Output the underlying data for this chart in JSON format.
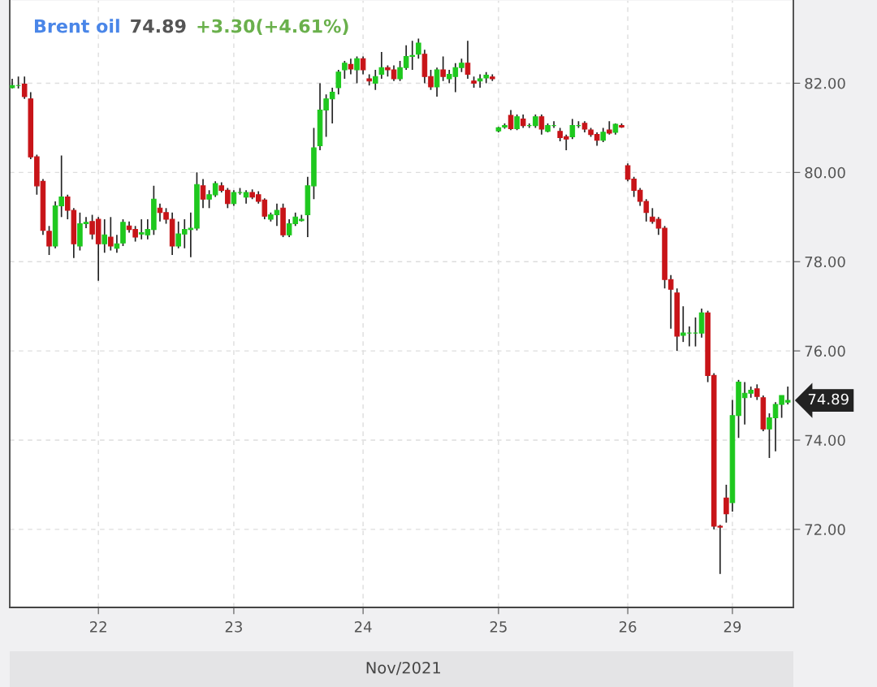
{
  "chart_data": {
    "type": "candlestick",
    "title": "Brent oil",
    "xlabel": "Nov/2021",
    "annotations": [
      "74.89",
      "+3.30(+4.61%)",
      "74.89"
    ],
    "categories": [
      null,
      null,
      null,
      null,
      null,
      null,
      null,
      null,
      null,
      null,
      null,
      null,
      null,
      null,
      "22",
      null,
      null,
      null,
      null,
      null,
      null,
      null,
      null,
      null,
      null,
      null,
      null,
      null,
      null,
      null,
      null,
      null,
      null,
      null,
      null,
      null,
      "23",
      null,
      null,
      null,
      null,
      null,
      null,
      null,
      null,
      null,
      null,
      null,
      null,
      null,
      null,
      null,
      null,
      null,
      null,
      null,
      null,
      "24",
      null,
      null,
      null,
      null,
      null,
      null,
      null,
      null,
      null,
      null,
      null,
      null,
      null,
      null,
      null,
      null,
      null,
      null,
      null,
      null,
      null,
      "25",
      null,
      null,
      null,
      null,
      null,
      null,
      null,
      null,
      null,
      null,
      null,
      null,
      null,
      null,
      null,
      null,
      null,
      null,
      null,
      null,
      "26",
      null,
      null,
      null,
      null,
      null,
      null,
      null,
      null,
      null,
      null,
      null,
      null,
      null,
      null,
      null,
      null,
      "29",
      null,
      null,
      null,
      null,
      null,
      null,
      null,
      null,
      null
    ],
    "ohlc": [
      [
        81.9,
        82.1,
        81.88,
        81.95
      ],
      [
        81.95,
        82.15,
        81.88,
        81.95
      ],
      [
        81.98,
        82.15,
        81.65,
        81.7
      ],
      [
        81.65,
        81.8,
        80.3,
        80.35
      ],
      [
        80.35,
        80.4,
        79.5,
        79.7
      ],
      [
        79.8,
        79.85,
        78.6,
        78.7
      ],
      [
        78.68,
        78.8,
        78.15,
        78.35
      ],
      [
        78.35,
        79.35,
        78.3,
        79.25
      ],
      [
        79.25,
        80.38,
        79.0,
        79.45
      ],
      [
        79.45,
        79.5,
        78.95,
        79.15
      ],
      [
        79.15,
        79.2,
        78.08,
        78.4
      ],
      [
        78.35,
        79.1,
        78.25,
        78.85
      ],
      [
        78.85,
        79.0,
        78.75,
        78.88
      ],
      [
        78.9,
        79.05,
        78.5,
        78.62
      ],
      [
        78.95,
        79.0,
        77.57,
        78.4
      ],
      [
        78.4,
        78.95,
        78.2,
        78.6
      ],
      [
        78.55,
        79.0,
        78.25,
        78.35
      ],
      [
        78.3,
        78.6,
        78.2,
        78.4
      ],
      [
        78.42,
        78.95,
        78.35,
        78.88
      ],
      [
        78.8,
        78.9,
        78.65,
        78.72
      ],
      [
        78.72,
        78.8,
        78.45,
        78.55
      ],
      [
        78.62,
        78.95,
        78.5,
        78.65
      ],
      [
        78.6,
        78.95,
        78.5,
        78.72
      ],
      [
        78.72,
        79.7,
        78.6,
        79.4
      ],
      [
        79.2,
        79.3,
        78.9,
        79.1
      ],
      [
        79.1,
        79.2,
        78.85,
        78.95
      ],
      [
        78.95,
        79.1,
        78.15,
        78.35
      ],
      [
        78.35,
        78.9,
        78.3,
        78.62
      ],
      [
        78.62,
        78.95,
        78.3,
        78.72
      ],
      [
        78.72,
        79.1,
        78.1,
        78.75
      ],
      [
        78.75,
        80.0,
        78.7,
        79.73
      ],
      [
        79.7,
        79.85,
        79.2,
        79.4
      ],
      [
        79.4,
        79.6,
        79.2,
        79.5
      ],
      [
        79.5,
        79.8,
        79.45,
        79.75
      ],
      [
        79.7,
        79.78,
        79.55,
        79.6
      ],
      [
        79.6,
        79.65,
        79.2,
        79.3
      ],
      [
        79.3,
        79.6,
        79.25,
        79.55
      ],
      [
        79.55,
        79.65,
        79.5,
        79.55
      ],
      [
        79.45,
        79.6,
        79.3,
        79.55
      ],
      [
        79.55,
        79.62,
        79.4,
        79.45
      ],
      [
        79.5,
        79.58,
        79.3,
        79.35
      ],
      [
        79.38,
        79.42,
        78.95,
        79.02
      ],
      [
        78.95,
        79.1,
        78.9,
        79.05
      ],
      [
        79.05,
        79.3,
        78.8,
        79.15
      ],
      [
        79.2,
        79.3,
        78.55,
        78.6
      ],
      [
        78.6,
        78.95,
        78.55,
        78.85
      ],
      [
        78.85,
        79.1,
        78.8,
        79.0
      ],
      [
        78.92,
        79.05,
        78.9,
        78.95
      ],
      [
        79.05,
        79.9,
        78.55,
        79.7
      ],
      [
        79.7,
        81.0,
        79.4,
        80.55
      ],
      [
        80.6,
        82.0,
        80.5,
        81.4
      ],
      [
        81.4,
        81.75,
        80.8,
        81.65
      ],
      [
        81.65,
        81.9,
        81.1,
        81.8
      ],
      [
        81.9,
        82.3,
        81.75,
        82.25
      ],
      [
        82.3,
        82.5,
        82.1,
        82.45
      ],
      [
        82.42,
        82.55,
        82.2,
        82.32
      ],
      [
        82.3,
        82.6,
        82.0,
        82.55
      ],
      [
        82.55,
        82.6,
        82.2,
        82.3
      ],
      [
        82.1,
        82.2,
        81.95,
        82.05
      ],
      [
        82.0,
        82.3,
        81.85,
        82.15
      ],
      [
        82.2,
        82.7,
        82.1,
        82.35
      ],
      [
        82.35,
        82.4,
        82.15,
        82.3
      ],
      [
        82.3,
        82.4,
        82.05,
        82.1
      ],
      [
        82.1,
        82.5,
        82.05,
        82.35
      ],
      [
        82.35,
        82.85,
        82.3,
        82.6
      ],
      [
        82.6,
        82.95,
        82.3,
        82.62
      ],
      [
        82.65,
        83.0,
        82.55,
        82.9
      ],
      [
        82.65,
        82.75,
        82.0,
        82.15
      ],
      [
        82.15,
        82.3,
        81.85,
        81.92
      ],
      [
        81.92,
        82.35,
        81.7,
        82.3
      ],
      [
        82.3,
        82.6,
        82.05,
        82.15
      ],
      [
        82.1,
        82.3,
        82.0,
        82.2
      ],
      [
        82.15,
        82.45,
        81.8,
        82.35
      ],
      [
        82.35,
        82.55,
        82.25,
        82.45
      ],
      [
        82.45,
        82.95,
        82.1,
        82.2
      ],
      [
        82.05,
        82.15,
        81.9,
        82.0
      ],
      [
        82.05,
        82.2,
        81.9,
        82.1
      ],
      [
        82.12,
        82.25,
        82.0,
        82.18
      ],
      [
        82.14,
        82.2,
        82.05,
        82.1
      ],
      [
        80.93,
        81.02,
        80.9,
        81.0
      ],
      [
        81.02,
        81.1,
        80.98,
        81.05
      ],
      [
        81.28,
        81.4,
        80.95,
        80.98
      ],
      [
        80.98,
        81.3,
        80.95,
        81.25
      ],
      [
        81.2,
        81.3,
        81.0,
        81.05
      ],
      [
        81.05,
        81.1,
        81.0,
        81.05
      ],
      [
        81.05,
        81.3,
        81.0,
        81.25
      ],
      [
        81.25,
        81.3,
        80.85,
        80.97
      ],
      [
        80.92,
        81.1,
        80.9,
        81.05
      ],
      [
        81.05,
        81.15,
        81.0,
        81.05
      ],
      [
        80.92,
        81.0,
        80.7,
        80.78
      ],
      [
        80.8,
        80.85,
        80.5,
        80.75
      ],
      [
        80.8,
        81.2,
        80.75,
        81.05
      ],
      [
        81.05,
        81.15,
        81.0,
        81.05
      ],
      [
        81.1,
        81.15,
        80.9,
        80.97
      ],
      [
        80.95,
        81.0,
        80.8,
        80.85
      ],
      [
        80.85,
        80.9,
        80.6,
        80.72
      ],
      [
        80.72,
        81.0,
        80.68,
        80.9
      ],
      [
        80.95,
        81.15,
        80.85,
        80.88
      ],
      [
        80.9,
        81.1,
        80.85,
        81.08
      ],
      [
        81.05,
        81.1,
        81.0,
        81.02
      ],
      [
        80.15,
        80.2,
        79.8,
        79.85
      ],
      [
        79.85,
        79.9,
        79.45,
        79.6
      ],
      [
        79.6,
        79.65,
        79.25,
        79.35
      ],
      [
        79.35,
        79.4,
        78.9,
        79.1
      ],
      [
        79.0,
        79.2,
        78.85,
        78.9
      ],
      [
        78.95,
        79.0,
        78.6,
        78.75
      ],
      [
        78.75,
        78.8,
        77.4,
        77.6
      ],
      [
        77.6,
        77.7,
        76.5,
        77.38
      ],
      [
        77.3,
        77.4,
        76.0,
        76.33
      ],
      [
        76.35,
        77.0,
        76.2,
        76.4
      ],
      [
        76.4,
        76.55,
        76.1,
        76.4
      ],
      [
        76.4,
        76.75,
        76.1,
        76.4
      ],
      [
        76.4,
        76.95,
        76.3,
        76.85
      ],
      [
        76.85,
        76.9,
        75.3,
        75.45
      ],
      [
        75.45,
        75.5,
        72.0,
        72.07
      ],
      [
        72.07,
        72.1,
        71.0,
        72.05
      ],
      [
        72.7,
        73.0,
        72.15,
        72.35
      ],
      [
        72.6,
        74.9,
        72.4,
        74.55
      ],
      [
        74.55,
        75.35,
        74.05,
        75.3
      ],
      [
        74.95,
        75.3,
        74.35,
        75.05
      ],
      [
        75.05,
        75.2,
        74.95,
        75.12
      ],
      [
        75.15,
        75.25,
        74.9,
        74.98
      ],
      [
        74.95,
        75.0,
        74.2,
        74.25
      ],
      [
        74.25,
        74.6,
        73.6,
        74.5
      ],
      [
        74.5,
        74.85,
        73.75,
        74.8
      ],
      [
        74.8,
        75.0,
        74.5,
        75.0
      ],
      [
        74.85,
        75.2,
        74.8,
        74.89
      ]
    ],
    "colors": [
      "#1ec81e",
      "#1ec81e",
      "#c81418",
      "#c81418",
      "#c81418",
      "#c81418",
      "#c81418",
      "#1ec81e",
      "#1ec81e",
      "#c81418",
      "#c81418",
      "#1ec81e",
      "#1ec81e",
      "#c81418",
      "#c81418",
      "#1ec81e",
      "#c81418",
      "#1ec81e",
      "#1ec81e",
      "#c81418",
      "#c81418",
      "#1ec81e",
      "#1ec81e",
      "#1ec81e",
      "#c81418",
      "#c81418",
      "#c81418",
      "#1ec81e",
      "#1ec81e",
      "#1ec81e",
      "#1ec81e",
      "#c81418",
      "#1ec81e",
      "#1ec81e",
      "#c81418",
      "#c81418",
      "#1ec81e",
      "#1ec81e",
      "#1ec81e",
      "#c81418",
      "#c81418",
      "#c81418",
      "#1ec81e",
      "#1ec81e",
      "#c81418",
      "#1ec81e",
      "#1ec81e",
      "#1ec81e",
      "#1ec81e",
      "#1ec81e",
      "#1ec81e",
      "#1ec81e",
      "#1ec81e",
      "#1ec81e",
      "#1ec81e",
      "#c81418",
      "#1ec81e",
      "#c81418",
      "#c81418",
      "#1ec81e",
      "#1ec81e",
      "#c81418",
      "#c81418",
      "#1ec81e",
      "#1ec81e",
      "#1ec81e",
      "#1ec81e",
      "#c81418",
      "#c81418",
      "#1ec81e",
      "#c81418",
      "#1ec81e",
      "#1ec81e",
      "#1ec81e",
      "#c81418",
      "#c81418",
      "#1ec81e",
      "#1ec81e",
      "#c81418",
      "#1ec81e",
      "#1ec81e",
      "#c81418",
      "#1ec81e",
      "#c81418",
      "#1ec81e",
      "#1ec81e",
      "#c81418",
      "#1ec81e",
      "#1ec81e",
      "#c81418",
      "#c81418",
      "#1ec81e",
      "#1ec81e",
      "#c81418",
      "#c81418",
      "#c81418",
      "#1ec81e",
      "#c81418",
      "#1ec81e",
      "#c81418",
      "#c81418",
      "#c81418",
      "#c81418",
      "#c81418",
      "#c81418",
      "#c81418",
      "#c81418",
      "#c81418",
      "#c81418",
      "#1ec81e",
      "#1ec81e",
      "#1ec81e",
      "#1ec81e",
      "#c81418",
      "#c81418",
      "#c81418",
      "#c81418",
      "#1ec81e",
      "#1ec81e",
      "#1ec81e",
      "#1ec81e",
      "#c81418",
      "#c81418",
      "#1ec81e",
      "#1ec81e",
      "#1ec81e",
      "#1ec81e"
    ],
    "ylim": [
      70.25,
      83.85
    ],
    "yticks": [
      {
        "value": 72,
        "label": "72.00"
      },
      {
        "value": 74,
        "label": "74.00"
      },
      {
        "value": 76,
        "label": "76.00"
      },
      {
        "value": 78,
        "label": "78.00"
      },
      {
        "value": 80,
        "label": "80.00"
      },
      {
        "value": 82,
        "label": "82.00"
      }
    ],
    "grid": true,
    "legend": false
  }
}
